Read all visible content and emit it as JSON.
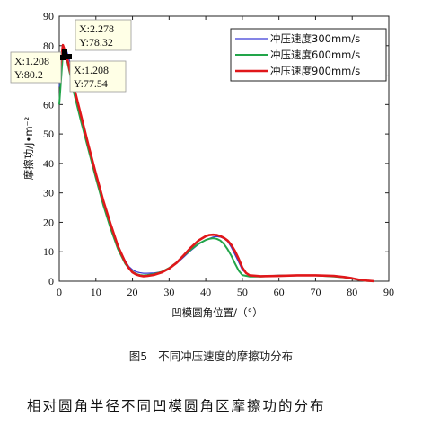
{
  "chart_data": {
    "type": "line",
    "title": "",
    "xlabel": "凹模圆角位置/（°）",
    "ylabel": "摩擦功/J•m⁻²",
    "xlim": [
      0,
      90
    ],
    "ylim": [
      0,
      90
    ],
    "xticks": [
      0,
      10,
      20,
      30,
      40,
      50,
      60,
      70,
      80,
      90
    ],
    "yticks": [
      0,
      10,
      20,
      30,
      40,
      50,
      60,
      70,
      80,
      90
    ],
    "grid": false,
    "legend_position": "top-right",
    "series": [
      {
        "name": "冲压速度300mm/s",
        "color": "#3b3bd6",
        "x": [
          0,
          1,
          2,
          3,
          4,
          5,
          6,
          8,
          10,
          12,
          14,
          16,
          18,
          19,
          20,
          21,
          22,
          23,
          24,
          26,
          28,
          30,
          32,
          34,
          36,
          38,
          40,
          41,
          42,
          43,
          44,
          45,
          46,
          47,
          48,
          49,
          50,
          52,
          55,
          60,
          65,
          70,
          75,
          78,
          80,
          82,
          84,
          86
        ],
        "y": [
          66,
          76.5,
          78.3,
          74,
          67,
          61,
          55,
          46,
          36,
          27,
          19,
          12,
          7,
          5,
          3.9,
          3.2,
          2.9,
          2.7,
          2.7,
          2.8,
          3.2,
          4.3,
          6,
          8.2,
          10.5,
          12.5,
          14,
          14.5,
          15,
          15.2,
          15,
          14.5,
          13.5,
          11.5,
          9,
          6.5,
          3.8,
          2,
          1.8,
          2,
          2,
          2,
          1.8,
          1.5,
          1,
          0.5,
          0.2,
          0
        ]
      },
      {
        "name": "冲压速度600mm/s",
        "color": "#22a54a",
        "x": [
          0,
          1,
          2,
          3,
          4,
          5,
          6,
          8,
          10,
          12,
          14,
          16,
          18,
          19,
          20,
          21,
          22,
          23,
          24,
          26,
          28,
          30,
          32,
          34,
          36,
          38,
          40,
          41,
          42,
          43,
          44,
          45,
          46,
          47,
          48,
          49,
          50,
          52,
          55,
          60,
          65,
          70,
          75,
          78,
          80,
          82,
          84,
          86
        ],
        "y": [
          60,
          77.54,
          75.5,
          70,
          64,
          59,
          54,
          44.5,
          35,
          26,
          18,
          11,
          6,
          4.4,
          3.2,
          2.5,
          2.1,
          2,
          2.1,
          2.5,
          3.2,
          4.5,
          6.3,
          8.6,
          10.8,
          12.7,
          14,
          14.4,
          14.6,
          14.4,
          13.8,
          12.6,
          10.8,
          8.6,
          6,
          3.6,
          2.1,
          1.6,
          1.6,
          1.9,
          2,
          2,
          1.6,
          1.3,
          0.9,
          0.4,
          0.1,
          0
        ]
      },
      {
        "name": "冲压速度900mm/s",
        "color": "#e0171a",
        "x": [
          0,
          1,
          2,
          3,
          4,
          5,
          6,
          8,
          10,
          12,
          14,
          16,
          18,
          19,
          20,
          21,
          22,
          23,
          24,
          26,
          28,
          30,
          32,
          34,
          36,
          38,
          40,
          41,
          42,
          43,
          44,
          45,
          46,
          47,
          48,
          49,
          50,
          51,
          52,
          55,
          60,
          65,
          70,
          75,
          78,
          80,
          82,
          84,
          86
        ],
        "y": [
          70,
          80.2,
          76.5,
          71,
          66,
          61,
          56,
          46,
          36.5,
          27.5,
          19.5,
          12,
          6.5,
          4.5,
          3,
          2.3,
          1.9,
          1.7,
          1.8,
          2.2,
          3,
          4.3,
          6.2,
          8.8,
          11.5,
          13.8,
          15.3,
          15.7,
          15.8,
          15.7,
          15.3,
          14.7,
          13.8,
          12.3,
          10.2,
          7.6,
          4.6,
          2.8,
          2,
          1.7,
          1.8,
          2,
          2,
          1.8,
          1.4,
          1,
          0.5,
          0.2,
          0
        ]
      }
    ],
    "annotations": [
      {
        "x_text": "X:2.278",
        "y_text": "Y:78.32",
        "x": 2.278,
        "y": 78.32
      },
      {
        "x_text": "X:1.208",
        "y_text": "Y:80.2",
        "x": 1.208,
        "y": 80.2
      },
      {
        "x_text": "X:1.208",
        "y_text": "Y:77.54",
        "x": 1.208,
        "y": 77.54
      }
    ]
  },
  "caption": {
    "label": "图5",
    "text": "不同冲压速度的摩擦功分布"
  },
  "body_text": "相对圆角半径不同凹模圆角区摩擦功的分布"
}
